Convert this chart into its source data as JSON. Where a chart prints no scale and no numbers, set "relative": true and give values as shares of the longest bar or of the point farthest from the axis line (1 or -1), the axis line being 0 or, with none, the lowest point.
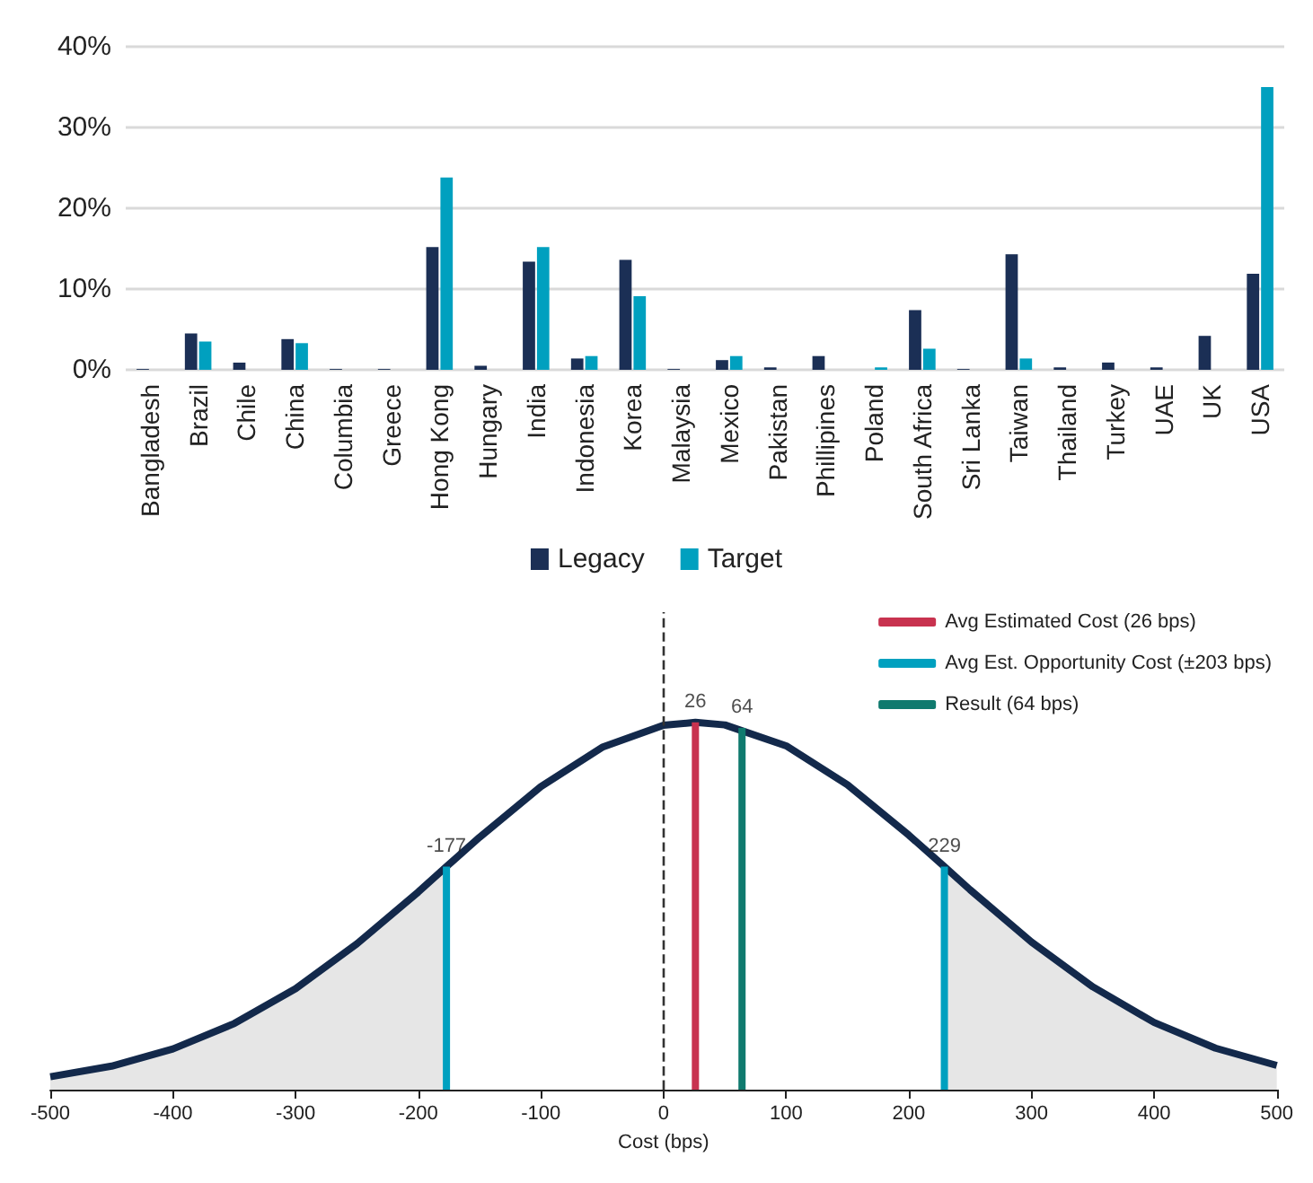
{
  "chart_data": [
    {
      "type": "bar",
      "categories": [
        "Bangladesh",
        "Brazil",
        "Chile",
        "China",
        "Columbia",
        "Greece",
        "Hong Kong",
        "Hungary",
        "India",
        "Indonesia",
        "Korea",
        "Malaysia",
        "Mexico",
        "Pakistan",
        "Phillipines",
        "Poland",
        "South Africa",
        "Sri Lanka",
        "Taiwan",
        "Thailand",
        "Turkey",
        "UAE",
        "UK",
        "USA"
      ],
      "series": [
        {
          "name": "Legacy",
          "color": "#1b2f55",
          "values": [
            0.1,
            4.5,
            0.9,
            3.8,
            0.1,
            0.1,
            15.2,
            0.5,
            13.4,
            1.4,
            13.6,
            0.1,
            1.2,
            0.3,
            1.7,
            0,
            7.4,
            0.1,
            14.3,
            0.3,
            0.9,
            0.3,
            4.2,
            11.9
          ]
        },
        {
          "name": "Target",
          "color": "#00a0bf",
          "values": [
            0,
            3.5,
            0,
            3.3,
            0,
            0,
            23.8,
            0,
            15.2,
            1.7,
            9.1,
            0,
            1.7,
            0,
            0,
            0.3,
            2.6,
            0,
            1.4,
            0,
            0,
            0,
            0,
            35.0
          ]
        }
      ],
      "ylim": [
        0,
        40
      ],
      "yticks": [
        {
          "value": 0,
          "label": "0%"
        },
        {
          "value": 10,
          "label": "10%"
        },
        {
          "value": 20,
          "label": "20%"
        },
        {
          "value": 30,
          "label": "30%"
        },
        {
          "value": 40,
          "label": "40%"
        }
      ],
      "grid": "y",
      "legend": "bottom"
    },
    {
      "type": "line",
      "relative": true,
      "xlabel": "Cost (bps)",
      "xlim": [
        -500,
        500
      ],
      "xticks": [
        -500,
        -400,
        -300,
        -200,
        -100,
        0,
        100,
        200,
        300,
        400,
        500
      ],
      "tick_labels": "x",
      "legend": "top right",
      "grid": false,
      "series": [
        {
          "type": "area",
          "color": "#e6e6e6",
          "x": [
            -500,
            -450,
            -400,
            -350,
            -300,
            -250,
            -200,
            -177
          ],
          "values": [
            0.035,
            0.064,
            0.111,
            0.18,
            0.275,
            0.397,
            0.538,
            0.607
          ]
        },
        {
          "type": "area",
          "color": "#e6e6e6",
          "x": [
            229,
            250,
            300,
            350,
            400,
            450,
            500
          ],
          "values": [
            0.607,
            0.544,
            0.402,
            0.28,
            0.183,
            0.113,
            0.066
          ]
        },
        {
          "color": "#13294b",
          "x": [
            -500,
            -450,
            -400,
            -350,
            -300,
            -250,
            -200,
            -177,
            -150,
            -100,
            -50,
            0,
            26,
            50,
            100,
            150,
            200,
            229,
            250,
            300,
            350,
            400,
            450,
            500
          ],
          "values": [
            0.035,
            0.064,
            0.111,
            0.18,
            0.275,
            0.397,
            0.538,
            0.607,
            0.687,
            0.825,
            0.932,
            0.992,
            1,
            0.993,
            0.936,
            0.83,
            0.693,
            0.607,
            0.544,
            0.402,
            0.28,
            0.183,
            0.113,
            0.066
          ]
        },
        {
          "name": "Avg Estimated Cost (26 bps)",
          "color": "#c8324f",
          "x": [
            26,
            26
          ],
          "values": [
            0,
            1
          ]
        },
        {
          "name": "Avg Est. Opportunity Cost (±203 bps)",
          "color": "#00a0bf",
          "x": [
            -177,
            -177
          ],
          "values": [
            0,
            0.607
          ]
        },
        {
          "color": "#00a0bf",
          "x": [
            229,
            229
          ],
          "values": [
            0,
            0.607
          ]
        },
        {
          "name": "Result (64 bps)",
          "color": "#0f7a6e",
          "x": [
            64,
            64
          ],
          "values": [
            0,
            0.985
          ]
        }
      ],
      "ref_lines": [
        {
          "axis": "x",
          "value": 0,
          "color": "#333333",
          "line_style": "dashed"
        }
      ],
      "annotations": [
        {
          "text": "26",
          "x": 26,
          "y": 1
        },
        {
          "text": "64",
          "x": 64,
          "y": 0.985
        },
        {
          "text": "-177",
          "x": -177,
          "y": 0.607
        },
        {
          "text": "229",
          "x": 229,
          "y": 0.607
        }
      ]
    }
  ]
}
